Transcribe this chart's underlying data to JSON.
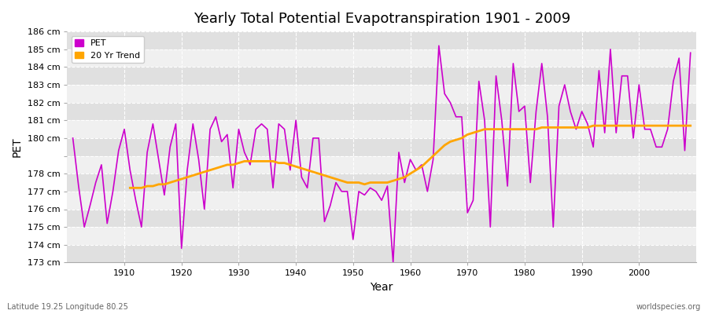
{
  "title": "Yearly Total Potential Evapotranspiration 1901 - 2009",
  "xlabel": "Year",
  "ylabel": "PET",
  "lat_lon_label": "Latitude 19.25 Longitude 80.25",
  "source_label": "worldspecies.org",
  "pet_color": "#cc00cc",
  "trend_color": "#ffa500",
  "background_color": "#ffffff",
  "plot_bg_color": "#e8e8e8",
  "band_color_light": "#f0f0f0",
  "band_color_dark": "#e0e0e0",
  "years": [
    1901,
    1902,
    1903,
    1904,
    1905,
    1906,
    1907,
    1908,
    1909,
    1910,
    1911,
    1912,
    1913,
    1914,
    1915,
    1916,
    1917,
    1918,
    1919,
    1920,
    1921,
    1922,
    1923,
    1924,
    1925,
    1926,
    1927,
    1928,
    1929,
    1930,
    1931,
    1932,
    1933,
    1934,
    1935,
    1936,
    1937,
    1938,
    1939,
    1940,
    1941,
    1942,
    1943,
    1944,
    1945,
    1946,
    1947,
    1948,
    1949,
    1950,
    1951,
    1952,
    1953,
    1954,
    1955,
    1956,
    1957,
    1958,
    1959,
    1960,
    1961,
    1962,
    1963,
    1964,
    1965,
    1966,
    1967,
    1968,
    1969,
    1970,
    1971,
    1972,
    1973,
    1974,
    1975,
    1976,
    1977,
    1978,
    1979,
    1980,
    1981,
    1982,
    1983,
    1984,
    1985,
    1986,
    1987,
    1988,
    1989,
    1990,
    1991,
    1992,
    1993,
    1994,
    1995,
    1996,
    1997,
    1998,
    1999,
    2000,
    2001,
    2002,
    2003,
    2004,
    2005,
    2006,
    2007,
    2008,
    2009
  ],
  "pet_values": [
    180.0,
    177.3,
    175.0,
    176.2,
    177.5,
    178.5,
    175.2,
    177.0,
    179.3,
    180.5,
    178.2,
    176.5,
    175.0,
    179.2,
    180.8,
    178.8,
    176.8,
    179.5,
    180.8,
    173.8,
    178.2,
    180.8,
    178.8,
    176.0,
    180.5,
    181.2,
    179.8,
    180.2,
    177.2,
    180.5,
    179.2,
    178.5,
    180.5,
    180.8,
    180.5,
    177.2,
    180.8,
    180.5,
    178.2,
    181.0,
    177.8,
    177.2,
    180.0,
    180.0,
    175.3,
    176.2,
    177.5,
    177.0,
    177.0,
    174.3,
    177.0,
    176.8,
    177.2,
    177.0,
    176.5,
    177.3,
    173.0,
    179.2,
    177.5,
    178.8,
    178.2,
    178.5,
    177.0,
    178.8,
    185.2,
    182.5,
    182.0,
    181.2,
    181.2,
    175.8,
    176.5,
    183.2,
    181.0,
    175.0,
    183.5,
    181.0,
    177.3,
    184.2,
    181.5,
    181.8,
    177.5,
    181.5,
    184.2,
    181.2,
    175.0,
    181.8,
    183.0,
    181.5,
    180.5,
    181.5,
    180.8,
    179.5,
    183.8,
    180.3,
    185.0,
    180.3,
    183.5,
    183.5,
    180.0,
    183.0,
    180.5,
    180.5,
    179.5,
    179.5,
    180.5,
    183.2,
    184.5,
    179.3,
    184.8
  ],
  "trend_values": [
    null,
    null,
    null,
    null,
    null,
    null,
    null,
    null,
    null,
    null,
    177.2,
    177.2,
    177.2,
    177.3,
    177.3,
    177.4,
    177.4,
    177.5,
    177.6,
    177.7,
    177.8,
    177.9,
    178.0,
    178.1,
    178.2,
    178.3,
    178.4,
    178.5,
    178.5,
    178.6,
    178.7,
    178.7,
    178.7,
    178.7,
    178.7,
    178.7,
    178.6,
    178.6,
    178.5,
    178.4,
    178.3,
    178.2,
    178.1,
    178.0,
    177.9,
    177.8,
    177.7,
    177.6,
    177.5,
    177.5,
    177.5,
    177.4,
    177.5,
    177.5,
    177.5,
    177.5,
    177.6,
    177.7,
    177.8,
    178.0,
    178.2,
    178.4,
    178.7,
    179.0,
    179.3,
    179.6,
    179.8,
    179.9,
    180.0,
    180.2,
    180.3,
    180.4,
    180.5,
    180.5,
    180.5,
    180.5,
    180.5,
    180.5,
    180.5,
    180.5,
    180.5,
    180.5,
    180.6,
    180.6,
    180.6,
    180.6,
    180.6,
    180.6,
    180.6,
    180.6,
    180.6,
    180.7,
    180.7,
    180.7,
    180.7,
    180.7,
    180.7,
    180.7,
    180.7,
    180.7,
    180.7,
    180.7,
    180.7,
    180.7,
    180.7,
    180.7,
    180.7,
    180.7,
    180.7
  ],
  "ylim": [
    173,
    186
  ],
  "yticks": [
    173,
    174,
    175,
    176,
    177,
    178,
    179,
    180,
    181,
    182,
    183,
    184,
    185,
    186
  ],
  "ytick_labels": [
    "173 cm",
    "174 cm",
    "175 cm",
    "176 cm",
    "177 cm",
    "178 cm",
    "",
    "180 cm",
    "181 cm",
    "182 cm",
    "183 cm",
    "184 cm",
    "185 cm",
    "186 cm"
  ],
  "xlim": [
    1900,
    2010
  ],
  "xticks": [
    1910,
    1920,
    1930,
    1940,
    1950,
    1960,
    1970,
    1980,
    1990,
    2000
  ]
}
